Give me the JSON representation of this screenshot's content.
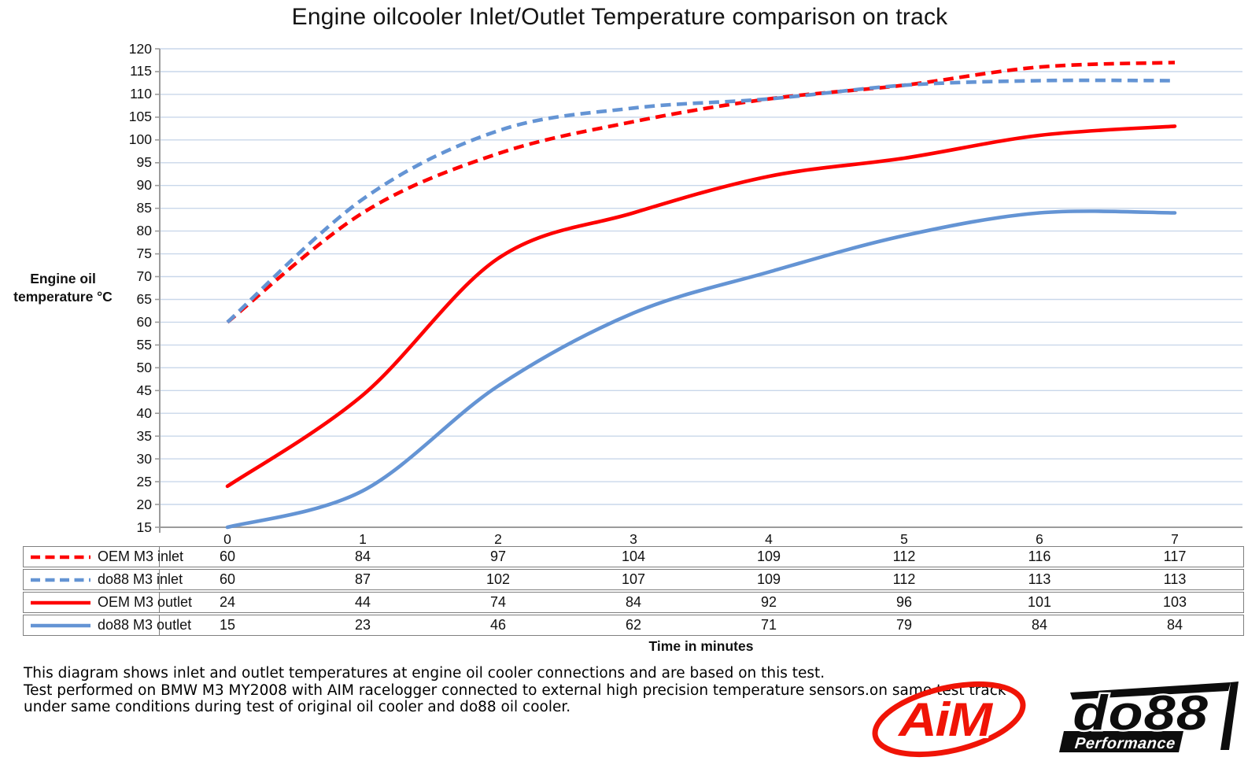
{
  "chart_data": {
    "type": "line",
    "title": "Engine oilcooler Inlet/Outlet Temperature comparison on track",
    "xlabel": "Time in minutes",
    "ylabel": "Engine oil temperature °C",
    "categories": [
      "0",
      "1",
      "2",
      "3",
      "4",
      "5",
      "6",
      "7"
    ],
    "ylim": [
      15,
      120
    ],
    "ytick_step": 5,
    "yticks": [
      120,
      115,
      110,
      105,
      100,
      95,
      90,
      85,
      80,
      75,
      70,
      65,
      60,
      55,
      50,
      45,
      40,
      35,
      30,
      25,
      20,
      15
    ],
    "grid": "horizontal",
    "smooth_lines": true,
    "legend_position": "table-left-column",
    "series": [
      {
        "name": "OEM M3 inlet",
        "style": "dashed",
        "color": "#fe0000",
        "values": [
          60,
          84,
          97,
          104,
          109,
          112,
          116,
          117
        ]
      },
      {
        "name": "do88 M3 inlet",
        "style": "dashed",
        "color": "#6494d4",
        "values": [
          60,
          87,
          102,
          107,
          109,
          112,
          113,
          113
        ]
      },
      {
        "name": "OEM M3 outlet",
        "style": "solid",
        "color": "#fe0000",
        "values": [
          24,
          44,
          74,
          84,
          92,
          96,
          101,
          103
        ]
      },
      {
        "name": "do88 M3 outlet",
        "style": "solid",
        "color": "#6494d4",
        "values": [
          15,
          23,
          46,
          62,
          71,
          79,
          84,
          84
        ]
      }
    ]
  },
  "footer": {
    "lines": [
      "This diagram shows inlet and outlet temperatures at engine oil cooler connections and are based on this test.",
      "Test performed on BMW M3 MY2008 with AIM racelogger connected to external high precision temperature sensors.on same test track",
      "under same conditions during test of original oil cooler and do88 oil cooler."
    ]
  },
  "logos": {
    "aim": {
      "text": "AiM"
    },
    "do88": {
      "text": "do88",
      "subtext": "Performance"
    }
  },
  "colors": {
    "red": "#fe0000",
    "blue": "#6494d4",
    "gridline": "#c9d7ea",
    "axis": "#9b9b9b",
    "table_border": "#7f7f7f",
    "aim_red": "#f01406",
    "logo_black": "#0d0d0d"
  }
}
